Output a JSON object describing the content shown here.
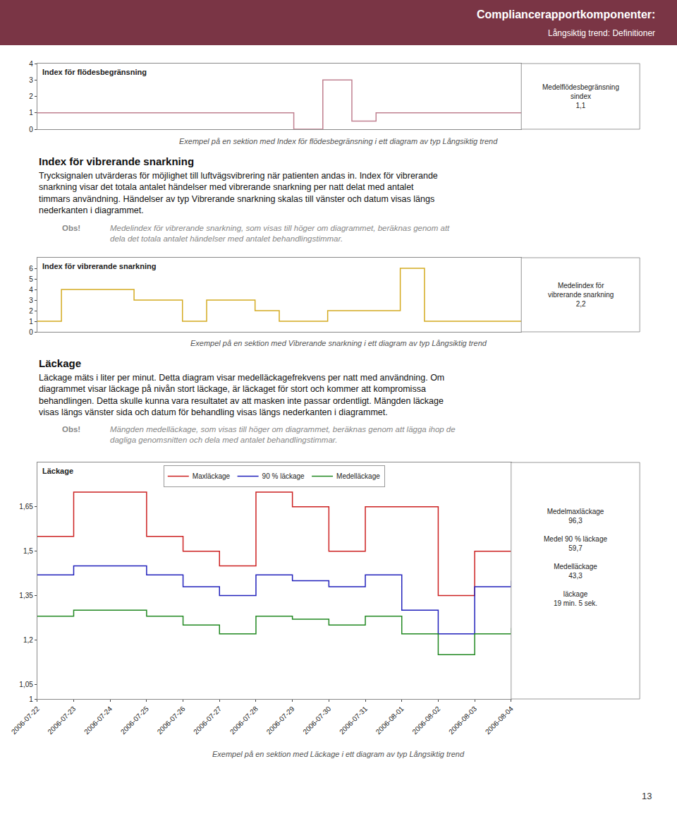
{
  "title": "Compliancerapportkomponenter:",
  "subtitle": "Långsiktig trend: Definitioner",
  "page_number": "13",
  "sections": [
    {
      "title": "Index för vibrerande snarkning",
      "text": "Trycksignalen utvärderas för möjlighet till luftvägsvibrering när patienten andas in. Index för vibrerande\nsnarkning visar det totala antalet händelser med vibrerande snarkning per natt delat med antalet\ntimmars användning. Händelser av typ Vibrerande snarkning skalas till vänster och datum visas längs\nnederkanten i diagrammet.",
      "note_label": "Obs!",
      "note": "Medelindex för vibrerande snarkning, som visas till höger om diagrammet, beräknas genom att\ndela det totala antalet händelser med antalet behandlingstimmar."
    },
    {
      "title": "Läckage",
      "text": "Läckage mäts i liter per minut. Detta diagram visar medelläckagefrekvens per natt med användning. Om\ndiagrammet visar läckage på nivån stort läckage, är läckaget för stort och kommer att kompromissa\nbehandlingen. Detta skulle kunna vara resultatet av att masken inte passar ordentligt. Mängden läckage\nvisas längs vänster sida och datum för behandling visas längs nederkanten i diagrammet.",
      "note_label": "Obs!",
      "note": "Mängden medelläckage, som visas till höger om diagrammet, beräknas genom att lägga ihop de\ndagliga genomsnitten och dela med antalet behandlingstimmar."
    }
  ],
  "chart_data": [
    {
      "type": "line",
      "line_style": "step",
      "title": "Index för flödesbegränsning",
      "caption": "Exempel på en sektion med Index för flödesbegränsning i ett diagram av typ Långsiktig trend",
      "annotations": [
        "Medelflödesbegränsning\nsindex\n1,1"
      ],
      "x": [
        0,
        0.53,
        0.53,
        0.59,
        0.59,
        0.65,
        0.65,
        0.7,
        0.7,
        1.0
      ],
      "values": [
        1,
        1,
        0,
        0,
        3,
        3,
        0.5,
        0.5,
        1,
        1
      ],
      "color": "#c08090",
      "xlim": [
        0,
        1
      ],
      "ylim": [
        0,
        4
      ],
      "yticks": [
        0,
        1,
        2,
        3,
        4
      ],
      "tick_labels": "y",
      "grid": false
    },
    {
      "type": "line",
      "line_style": "step",
      "title": "Index för vibrerande snarkning",
      "caption": "Exempel på en sektion med Vibrerande snarkning i ett diagram av typ Långsiktig trend",
      "annotations": [
        "Medelindex för\nvibrerande snarkning\n2,2"
      ],
      "x": [
        0,
        0.05,
        0.05,
        0.2,
        0.2,
        0.3,
        0.3,
        0.35,
        0.35,
        0.45,
        0.45,
        0.5,
        0.5,
        0.6,
        0.6,
        0.75,
        0.75,
        0.8,
        0.8,
        1.0
      ],
      "values": [
        1,
        1,
        4,
        4,
        3,
        3,
        1,
        1,
        3,
        3,
        2,
        2,
        1,
        1,
        2,
        2,
        6,
        6,
        1,
        1
      ],
      "color": "#d4aa20",
      "xlim": [
        0,
        1
      ],
      "ylim": [
        0,
        7
      ],
      "yticks": [
        0,
        1,
        2,
        3,
        4,
        5,
        6
      ],
      "tick_labels": "y",
      "grid": false
    },
    {
      "type": "line",
      "line_style": "step",
      "title": "Läckage",
      "caption": "Exempel på en sektion med Läckage i ett diagram av typ Långsiktig trend",
      "annotations": [
        "Medelmaxläckage\n96,3\n\nMedel 90 % läckage\n59,7\n\nMedelläckage\n43,3\n\nläckage\n19 min. 5 sek."
      ],
      "categories": [
        "2006-07-22",
        "2006-07-23",
        "2006-07-24",
        "2006-07-25",
        "2006-07-26",
        "2006-07-27",
        "2006-07-28",
        "2006-07-29",
        "2006-07-30",
        "2006-07-31",
        "2006-08-01",
        "2006-08-02",
        "2006-08-03",
        "2006-08-04"
      ],
      "series": [
        {
          "name": "Maxläckage",
          "color": "#cc2020",
          "values": [
            1.55,
            1.7,
            1.7,
            1.55,
            1.5,
            1.45,
            1.7,
            1.65,
            1.5,
            1.65,
            1.65,
            1.35,
            1.5,
            1.5
          ]
        },
        {
          "name": "90 % läckage",
          "color": "#2020bb",
          "values": [
            1.42,
            1.45,
            1.45,
            1.42,
            1.38,
            1.35,
            1.42,
            1.4,
            1.38,
            1.42,
            1.3,
            1.22,
            1.38,
            1.4
          ]
        },
        {
          "name": "Medelläckage",
          "color": "#208820",
          "values": [
            1.28,
            1.3,
            1.3,
            1.28,
            1.25,
            1.22,
            1.28,
            1.27,
            1.25,
            1.28,
            1.22,
            1.15,
            1.22,
            1.24
          ]
        }
      ],
      "ylim": [
        1.0,
        1.8
      ],
      "yticks": [
        1,
        {
          "value": 1.05,
          "label": "1,05"
        },
        {
          "value": 1.2,
          "label": "1,2"
        },
        {
          "value": 1.35,
          "label": "1,35"
        },
        {
          "value": 1.5,
          "label": "1,5"
        },
        {
          "value": 1.65,
          "label": "1,65"
        }
      ],
      "legend": "top",
      "grid": false
    }
  ]
}
